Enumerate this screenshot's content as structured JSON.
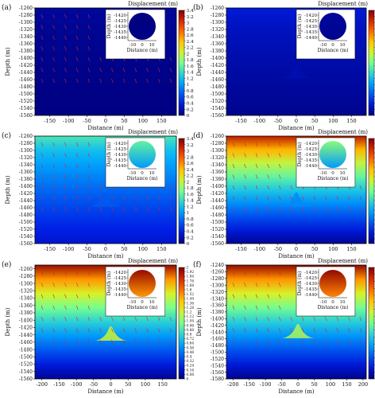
{
  "colorbar_title": "Displacement (m)",
  "chart_data": [
    {
      "type": "heatmap",
      "panel_label": "(a)",
      "xlabel": "Distance (m)",
      "ylabel": "Depth (m)",
      "xlim": [
        -190,
        190
      ],
      "ylim": [
        -1560,
        -1260
      ],
      "xticks": [
        -150,
        -100,
        -50,
        0,
        50,
        100,
        150
      ],
      "yticks": [
        -1260,
        -1280,
        -1300,
        -1320,
        -1340,
        -1360,
        -1380,
        -1400,
        -1420,
        -1440,
        -1460,
        -1480,
        -1500,
        -1520,
        -1540,
        -1560
      ],
      "colorbar_ticks": [
        0,
        0.2,
        0.4,
        0.6,
        0.8,
        1.0,
        1.2,
        1.4,
        1.6,
        1.8,
        2.0,
        2.2,
        2.4,
        2.6,
        2.8,
        3.0,
        3.2,
        3.4
      ],
      "cbar_range": [
        0,
        3.4
      ],
      "background_value": 0.0,
      "top_value": 0.1,
      "tunnel_value": 0.0,
      "tunnel_bump": false,
      "has_vectors": true,
      "inset": {
        "xlabel": "Distance (m)",
        "ylabel": "Depth (m)",
        "xticks": [
          -10,
          0,
          10
        ],
        "yticks": [
          -1420,
          -1425,
          -1430,
          -1435,
          -1440
        ],
        "top_value": 0.0,
        "bottom_value": 0.0
      }
    },
    {
      "type": "heatmap",
      "panel_label": "(b)",
      "xlabel": "Distance (m)",
      "ylabel": "Depth (m)",
      "xlim": [
        -190,
        190
      ],
      "ylim": [
        -1560,
        -1260
      ],
      "xticks": [
        -150,
        -100,
        -50,
        0,
        50,
        100,
        150
      ],
      "yticks": [
        -1260,
        -1280,
        -1300,
        -1320,
        -1340,
        -1360,
        -1380,
        -1400,
        -1420,
        -1440,
        -1460,
        -1480,
        -1500,
        -1520,
        -1540,
        -1560
      ],
      "colorbar_ticks": [
        0,
        0.2,
        0.4,
        0.6,
        0.8,
        1.0,
        1.2,
        1.4,
        1.6,
        1.8,
        2.0,
        2.2,
        2.4,
        2.6,
        2.8,
        3.0,
        3.2,
        3.4
      ],
      "cbar_range": [
        0,
        3.4
      ],
      "background_value": 0.05,
      "top_value": 0.35,
      "tunnel_value": 0.2,
      "tunnel_bump": true,
      "has_vectors": false,
      "inset": {
        "xlabel": "Distance (m)",
        "ylabel": "Depth (m)",
        "xticks": [
          -10,
          0,
          10
        ],
        "yticks": [
          -1420,
          -1425,
          -1430,
          -1435,
          -1440
        ],
        "top_value": 0.1,
        "bottom_value": 0.05
      }
    },
    {
      "type": "heatmap",
      "panel_label": "(c)",
      "xlabel": "Distance (m)",
      "ylabel": "Depth (m)",
      "xlim": [
        -190,
        190
      ],
      "ylim": [
        -1560,
        -1260
      ],
      "xticks": [
        -150,
        -100,
        -50,
        0,
        50,
        100,
        150
      ],
      "yticks": [
        -1260,
        -1280,
        -1300,
        -1320,
        -1340,
        -1360,
        -1380,
        -1400,
        -1420,
        -1440,
        -1460,
        -1480,
        -1500,
        -1520,
        -1540,
        -1560
      ],
      "colorbar_ticks": [
        0,
        0.2,
        0.4,
        0.6,
        0.8,
        1.0,
        1.2,
        1.4,
        1.6,
        1.8,
        2.0,
        2.2,
        2.4,
        2.6,
        2.8,
        3.0,
        3.2,
        3.4
      ],
      "cbar_range": [
        0,
        3.4
      ],
      "background_value": 0.3,
      "top_value": 1.5,
      "tunnel_value": 0.7,
      "tunnel_bump": true,
      "has_vectors": true,
      "inset": {
        "xlabel": "Distance (m)",
        "ylabel": "Depth (m)",
        "xticks": [
          -10,
          0,
          10
        ],
        "yticks": [
          -1420,
          -1425,
          -1430,
          -1435,
          -1440
        ],
        "top_value": 1.6,
        "bottom_value": 1.0
      }
    },
    {
      "type": "heatmap",
      "panel_label": "(d)",
      "xlabel": "Distance (m)",
      "ylabel": "Depth (m)",
      "xlim": [
        -190,
        190
      ],
      "ylim": [
        -1560,
        -1260
      ],
      "xticks": [
        -150,
        -100,
        -50,
        0,
        50,
        100,
        150
      ],
      "yticks": [
        -1260,
        -1280,
        -1300,
        -1320,
        -1340,
        -1360,
        -1380,
        -1400,
        -1420,
        -1440,
        -1460,
        -1480,
        -1500,
        -1520,
        -1540,
        -1560
      ],
      "colorbar_ticks": [
        -0.4,
        0,
        0.4,
        0.8,
        1.2,
        1.6,
        2.0,
        2.4,
        2.8,
        3.2,
        3.6,
        4.0,
        4.4,
        4.8,
        5.2,
        5.6,
        6.0,
        6.4,
        6.8,
        7.2,
        7.6,
        8.0,
        8.4
      ],
      "cbar_range": [
        -0.4,
        8.4
      ],
      "background_value": -0.2,
      "top_value": 7.8,
      "tunnel_value": 2.0,
      "tunnel_bump": true,
      "has_vectors": true,
      "inset": {
        "xlabel": "Distance (m)",
        "ylabel": "Depth (m)",
        "xticks": [
          -10,
          0,
          10
        ],
        "yticks": [
          -1420,
          -1425,
          -1430,
          -1435,
          -1440
        ],
        "top_value": 4.2,
        "bottom_value": 2.2
      }
    },
    {
      "type": "heatmap",
      "panel_label": "(e)",
      "xlabel": "Distance (m)",
      "ylabel": "Depth (m)",
      "xlim": [
        -220,
        190
      ],
      "ylim": [
        -1560,
        -1250
      ],
      "xticks": [
        -200,
        -150,
        -100,
        -50,
        0,
        50,
        100,
        150
      ],
      "yticks": [
        -1260,
        -1280,
        -1300,
        -1320,
        -1340,
        -1360,
        -1380,
        -1400,
        -1420,
        -1440,
        -1460,
        -1480,
        -1500,
        -1520,
        -1540,
        -1560
      ],
      "colorbar_ticks": [
        0,
        0.08,
        0.16,
        0.24,
        0.32,
        0.4,
        0.48,
        0.56,
        0.64,
        0.72,
        0.8,
        0.88,
        0.96,
        1.04,
        1.12,
        1.2,
        1.28,
        1.36,
        1.44,
        1.52,
        1.6,
        1.68,
        1.76,
        1.84,
        1.92,
        2.0
      ],
      "cbar_range": [
        0,
        2.0
      ],
      "background_value": 0.05,
      "top_value": 1.95,
      "tunnel_value": 1.2,
      "tunnel_bump": true,
      "has_vectors": true,
      "inset": {
        "xlabel": "Distance (m)",
        "ylabel": "Depth (m)",
        "xticks": [
          -10,
          0,
          10
        ],
        "yticks": [
          -1420,
          -1425,
          -1430,
          -1435,
          -1440
        ],
        "top_value": 1.95,
        "bottom_value": 1.5
      }
    },
    {
      "type": "heatmap",
      "panel_label": "(f)",
      "xlabel": "Distance (m)",
      "ylabel": "Depth (m)",
      "xlim": [
        -220,
        210
      ],
      "ylim": [
        -1580,
        -1240
      ],
      "xticks": [
        -200,
        -150,
        -100,
        -50,
        0,
        50,
        100,
        150,
        200
      ],
      "yticks": [
        -1240,
        -1260,
        -1280,
        -1300,
        -1320,
        -1340,
        -1360,
        -1380,
        -1400,
        -1420,
        -1440,
        -1460,
        -1480,
        -1500,
        -1520,
        -1540,
        -1560,
        -1580
      ],
      "colorbar_ticks": [
        0.12,
        0.24,
        0.36,
        0.48,
        0.6,
        0.72,
        0.84,
        0.96,
        1.08,
        1.2,
        1.32,
        1.44,
        1.56,
        1.68,
        1.8,
        1.92,
        2.04
      ],
      "cbar_range": [
        0.12,
        2.04
      ],
      "background_value": 0.15,
      "top_value": 2.0,
      "tunnel_value": 1.2,
      "tunnel_bump": true,
      "has_vectors": true,
      "inset": {
        "xlabel": "Distance (m)",
        "ylabel": "Depth (m)",
        "xticks": [
          -10,
          0,
          10
        ],
        "yticks": [
          -1420,
          -1425,
          -1430,
          -1435,
          -1440
        ],
        "top_value": 2.0,
        "bottom_value": 1.6
      }
    }
  ]
}
